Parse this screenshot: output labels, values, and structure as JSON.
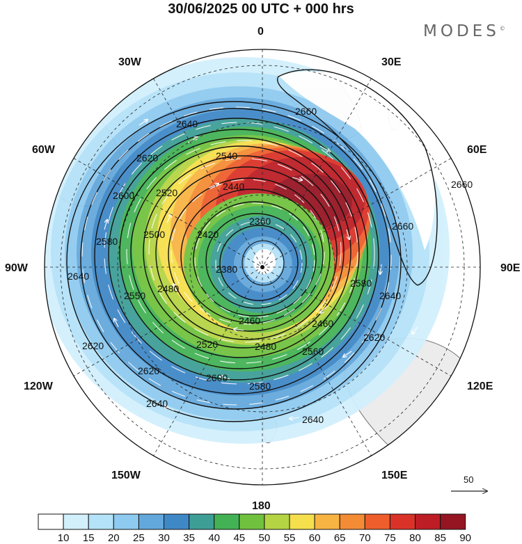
{
  "title": "30/06/2025  00 UTC  + 000 hrs",
  "brand": "MODES",
  "brand_mark": "©",
  "longitude_labels": {
    "lon_0": "0",
    "lon_30e": "30E",
    "lon_60e": "60E",
    "lon_90e": "90E",
    "lon_120e": "120E",
    "lon_150e": "150E",
    "lon_180": "180",
    "lon_150w": "150W",
    "lon_120w": "120W",
    "lon_90w": "90W",
    "lon_60w": "60W",
    "lon_30w": "30W"
  },
  "contour_labels": [
    "2360",
    "2420",
    "2440",
    "2540",
    "2620",
    "2640",
    "2660",
    "2660",
    "2660",
    "2600",
    "2520",
    "2580",
    "2500",
    "2480",
    "2550",
    "2640",
    "2620",
    "2620",
    "2640",
    "2600",
    "2580",
    "2480",
    "2520",
    "2460",
    "2560",
    "2640",
    "2620",
    "2640",
    "2580",
    "2460",
    "2380"
  ],
  "wind_vector_reference": {
    "value": "50"
  },
  "colorbar": {
    "ticks": [
      "10",
      "15",
      "20",
      "25",
      "30",
      "35",
      "40",
      "45",
      "50",
      "55",
      "60",
      "65",
      "70",
      "75",
      "80",
      "85",
      "90"
    ],
    "colors": [
      "#ffffff",
      "#d2f0fc",
      "#b4e2f8",
      "#8fcaf0",
      "#63a8dc",
      "#3f88c6",
      "#3d9e96",
      "#42b254",
      "#70c23e",
      "#b5d444",
      "#f6df4c",
      "#f8b443",
      "#f48c35",
      "#ed5e2c",
      "#da3228",
      "#bd1d25",
      "#951522"
    ]
  },
  "colors": {
    "land": "#ececec",
    "coast": "#555555",
    "contour": "#111111",
    "vector": "#ffffff"
  }
}
